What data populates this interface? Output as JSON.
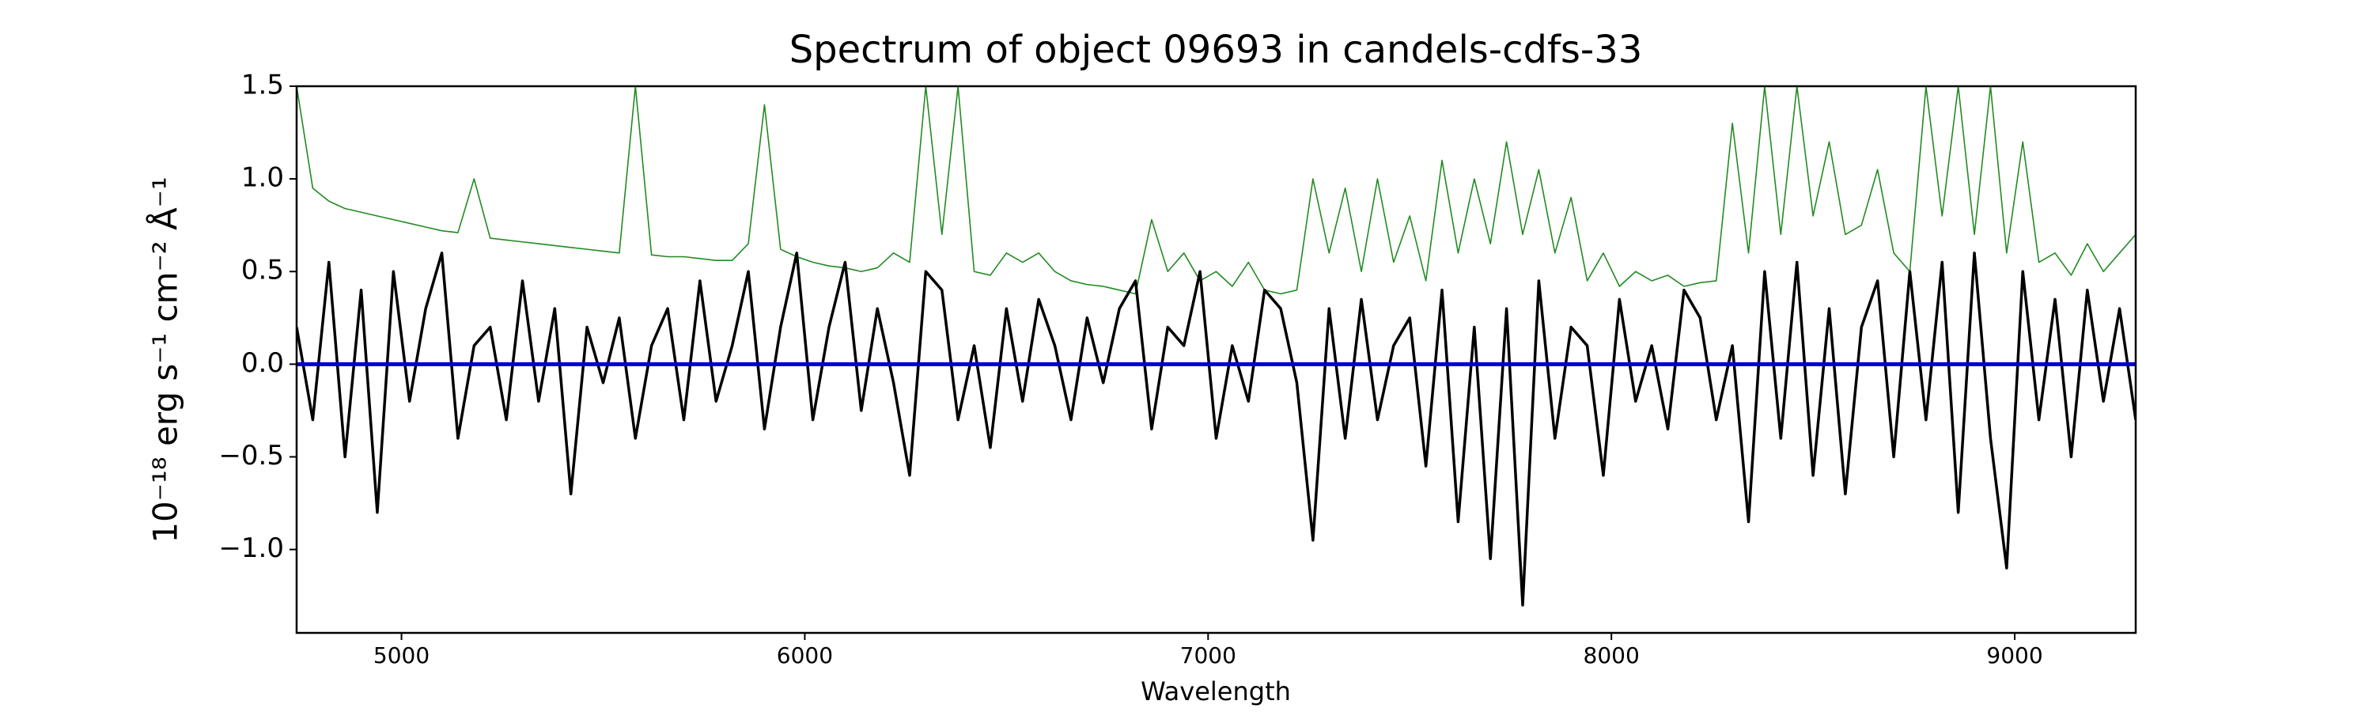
{
  "chart_data": {
    "type": "line",
    "title": "Spectrum of object 09693 in candels-cdfs-33",
    "xlabel": "Wavelength",
    "ylabel": "10⁻¹⁸ erg s⁻¹ cm⁻² Å⁻¹",
    "xlim": [
      4740,
      9300
    ],
    "ylim": [
      -1.45,
      1.5
    ],
    "xticks": [
      5000,
      6000,
      7000,
      8000,
      9000
    ],
    "yticks": [
      {
        "value": -1.0,
        "label": "−1.0"
      },
      {
        "value": -0.5,
        "label": "−0.5"
      },
      {
        "value": 0.0,
        "label": "0.0"
      },
      {
        "value": 0.5,
        "label": "0.5"
      },
      {
        "value": 1.0,
        "label": "1.0"
      },
      1.5
    ],
    "x": [
      4740,
      4780,
      4820,
      4860,
      4900,
      4940,
      4980,
      5020,
      5060,
      5100,
      5140,
      5180,
      5220,
      5260,
      5300,
      5340,
      5380,
      5420,
      5460,
      5500,
      5540,
      5580,
      5620,
      5660,
      5700,
      5740,
      5780,
      5820,
      5860,
      5900,
      5940,
      5980,
      6020,
      6060,
      6100,
      6140,
      6180,
      6220,
      6260,
      6300,
      6340,
      6380,
      6420,
      6460,
      6500,
      6540,
      6580,
      6620,
      6660,
      6700,
      6740,
      6780,
      6820,
      6860,
      6900,
      6940,
      6980,
      7020,
      7060,
      7100,
      7140,
      7180,
      7220,
      7260,
      7300,
      7340,
      7380,
      7420,
      7460,
      7500,
      7540,
      7580,
      7620,
      7660,
      7700,
      7740,
      7780,
      7820,
      7860,
      7900,
      7940,
      7980,
      8020,
      8060,
      8100,
      8140,
      8180,
      8220,
      8260,
      8300,
      8340,
      8380,
      8420,
      8460,
      8500,
      8540,
      8580,
      8620,
      8660,
      8700,
      8740,
      8780,
      8820,
      8860,
      8900,
      8940,
      8980,
      9020,
      9060,
      9100,
      9140,
      9180,
      9220,
      9260,
      9300
    ],
    "series": [
      {
        "color": "#228b22",
        "width": 1.6,
        "values": [
          1.5,
          0.95,
          0.88,
          0.84,
          0.82,
          0.8,
          0.78,
          0.76,
          0.74,
          0.72,
          0.71,
          1.0,
          0.68,
          0.67,
          0.66,
          0.65,
          0.64,
          0.63,
          0.62,
          0.61,
          0.6,
          1.5,
          0.59,
          0.58,
          0.58,
          0.57,
          0.56,
          0.56,
          0.65,
          1.4,
          0.62,
          0.58,
          0.55,
          0.53,
          0.52,
          0.5,
          0.52,
          0.6,
          0.55,
          1.5,
          0.7,
          1.5,
          0.5,
          0.48,
          0.6,
          0.55,
          0.6,
          0.5,
          0.45,
          0.43,
          0.42,
          0.4,
          0.38,
          0.78,
          0.5,
          0.6,
          0.45,
          0.5,
          0.42,
          0.55,
          0.4,
          0.38,
          0.4,
          1.0,
          0.6,
          0.95,
          0.5,
          1.0,
          0.55,
          0.8,
          0.45,
          1.1,
          0.6,
          1.0,
          0.65,
          1.2,
          0.7,
          1.05,
          0.6,
          0.9,
          0.45,
          0.6,
          0.42,
          0.5,
          0.45,
          0.48,
          0.42,
          0.44,
          0.45,
          1.3,
          0.6,
          1.5,
          0.7,
          1.5,
          0.8,
          1.2,
          0.7,
          0.75,
          1.05,
          0.6,
          0.5,
          1.5,
          0.8,
          1.5,
          0.7,
          1.5,
          0.6,
          1.2,
          0.55,
          0.6,
          0.48,
          0.65,
          0.5,
          0.6,
          0.7
        ]
      },
      {
        "color": "#000000",
        "width": 3.5,
        "values": [
          0.2,
          -0.3,
          0.55,
          -0.5,
          0.4,
          -0.8,
          0.5,
          -0.2,
          0.3,
          0.6,
          -0.4,
          0.1,
          0.2,
          -0.3,
          0.45,
          -0.2,
          0.3,
          -0.7,
          0.2,
          -0.1,
          0.25,
          -0.4,
          0.1,
          0.3,
          -0.3,
          0.45,
          -0.2,
          0.1,
          0.5,
          -0.35,
          0.2,
          0.6,
          -0.3,
          0.2,
          0.55,
          -0.25,
          0.3,
          -0.1,
          -0.6,
          0.5,
          0.4,
          -0.3,
          0.1,
          -0.45,
          0.3,
          -0.2,
          0.35,
          0.1,
          -0.3,
          0.25,
          -0.1,
          0.3,
          0.45,
          -0.35,
          0.2,
          0.1,
          0.5,
          -0.4,
          0.1,
          -0.2,
          0.4,
          0.3,
          -0.1,
          -0.95,
          0.3,
          -0.4,
          0.35,
          -0.3,
          0.1,
          0.25,
          -0.55,
          0.4,
          -0.85,
          0.2,
          -1.05,
          0.3,
          -1.3,
          0.45,
          -0.4,
          0.2,
          0.1,
          -0.6,
          0.35,
          -0.2,
          0.1,
          -0.35,
          0.4,
          0.25,
          -0.3,
          0.1,
          -0.85,
          0.5,
          -0.4,
          0.55,
          -0.6,
          0.3,
          -0.7,
          0.2,
          0.45,
          -0.5,
          0.5,
          -0.3,
          0.55,
          -0.8,
          0.6,
          -0.4,
          -1.1,
          0.5,
          -0.3,
          0.35,
          -0.5,
          0.4,
          -0.2,
          0.3,
          -0.3
        ]
      },
      {
        "color": "#0000cc",
        "width": 5,
        "values": [
          0,
          0,
          0,
          0,
          0,
          0,
          0,
          0,
          0,
          0,
          0,
          0,
          0,
          0,
          0,
          0,
          0,
          0,
          0,
          0,
          0,
          0,
          0,
          0,
          0,
          0,
          0,
          0,
          0,
          0,
          0,
          0,
          0,
          0,
          0,
          0,
          0,
          0,
          0,
          0,
          0,
          0,
          0,
          0,
          0,
          0,
          0,
          0,
          0,
          0,
          0,
          0,
          0,
          0,
          0,
          0,
          0,
          0,
          0,
          0,
          0,
          0,
          0,
          0,
          0,
          0,
          0,
          0,
          0,
          0,
          0,
          0,
          0,
          0,
          0,
          0,
          0,
          0,
          0,
          0,
          0,
          0,
          0,
          0,
          0,
          0,
          0,
          0,
          0,
          0,
          0,
          0,
          0,
          0,
          0,
          0,
          0,
          0,
          0,
          0,
          0,
          0,
          0,
          0,
          0,
          0,
          0,
          0,
          0,
          0,
          0,
          0,
          0,
          0,
          0
        ]
      }
    ]
  }
}
